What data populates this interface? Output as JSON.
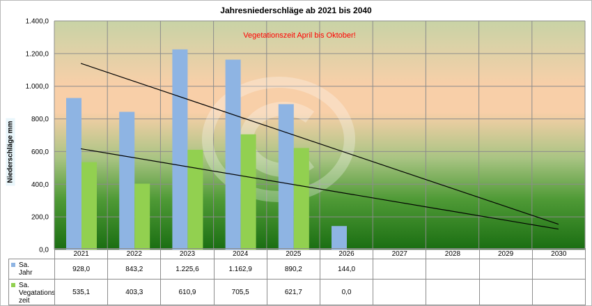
{
  "chart_data": {
    "type": "bar",
    "title": "Jahresniederschläge ab 2021 bis 2040",
    "ylabel": "Niederschläge mm",
    "xlabel": "",
    "ylim": [
      0,
      1400
    ],
    "yticks": [
      "0,0",
      "200,0",
      "400,0",
      "600,0",
      "800,0",
      "1.000,0",
      "1.200,0",
      "1.400,0"
    ],
    "categories": [
      "2021",
      "2022",
      "2023",
      "2024",
      "2025",
      "2026",
      "2027",
      "2028",
      "2029",
      "2030"
    ],
    "series": [
      {
        "name": "Sa. Jahr",
        "color": "#8eb4e3",
        "values": [
          928.0,
          843.2,
          1225.6,
          1162.9,
          890.2,
          144.0,
          null,
          null,
          null,
          null
        ],
        "labels": [
          "928,0",
          "843,2",
          "1.225,6",
          "1.162,9",
          "890,2",
          "144,0",
          "",
          "",
          "",
          ""
        ]
      },
      {
        "name": "Sa. Vegatations-zeit",
        "color": "#92d050",
        "values": [
          535.1,
          403.3,
          610.9,
          705.5,
          621.7,
          0.0,
          null,
          null,
          null,
          null
        ],
        "labels": [
          "535,1",
          "403,3",
          "610,9",
          "705,5",
          "621,7",
          "0,0",
          "",
          "",
          "",
          ""
        ]
      }
    ],
    "trendlines": [
      {
        "series": "Sa. Jahr",
        "color": "#000000",
        "from": {
          "x": "2021",
          "y": 1140
        },
        "to": {
          "x": "2030",
          "y": 155
        }
      },
      {
        "series": "Sa. Vegatations-zeit",
        "color": "#000000",
        "from": {
          "x": "2021",
          "y": 617
        },
        "to": {
          "x": "2030",
          "y": 125
        }
      }
    ],
    "annotation": "Vegetationszeit April bis Oktober!",
    "grid": true,
    "legend": "data-table",
    "background": {
      "top": "#c8d3a6",
      "middle": "#f8cfa8",
      "bottom": "#1a6e12"
    },
    "watermark": "copyright-icon"
  },
  "table": {
    "legend_labels": [
      "Sa.\nJahr",
      "Sa.\nVegatations-\nzeit"
    ]
  }
}
